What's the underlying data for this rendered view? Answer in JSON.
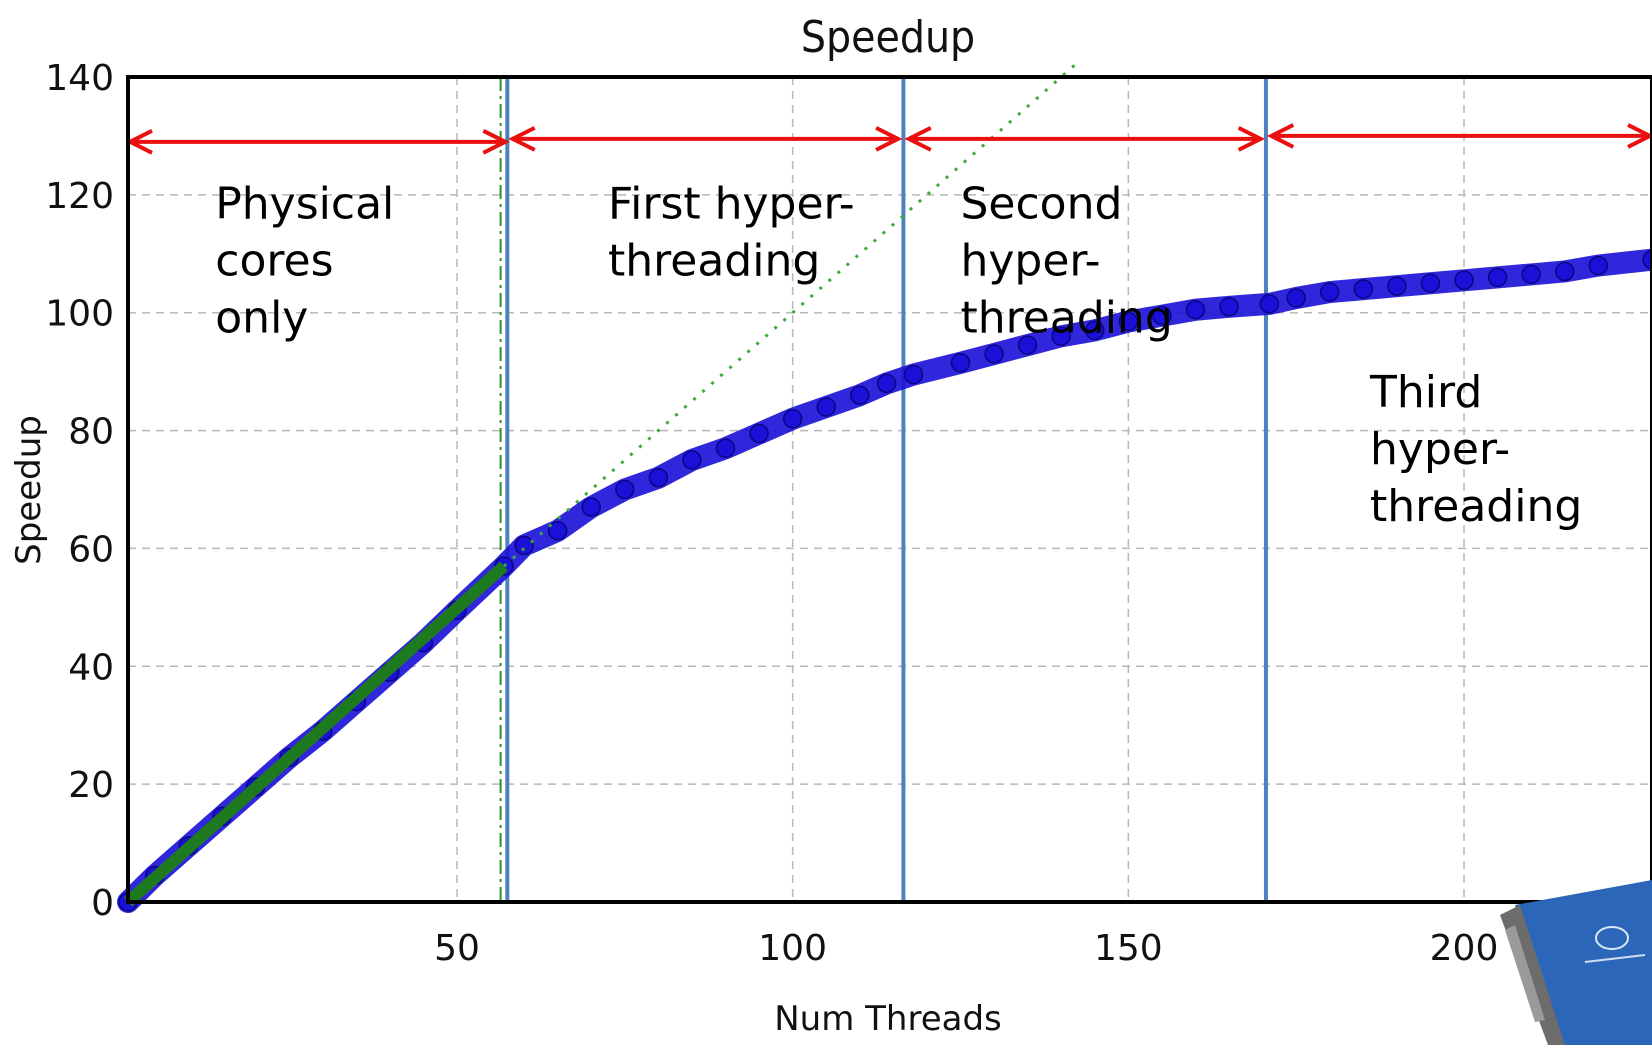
{
  "chart_data": {
    "type": "scatter",
    "title": "Speedup",
    "xlabel": "Num Threads",
    "ylabel": "Speedup",
    "xlim": [
      1,
      228
    ],
    "ylim": [
      0,
      140
    ],
    "xticks": [
      50,
      100,
      150,
      200
    ],
    "yticks": [
      0,
      20,
      40,
      60,
      80,
      100,
      120,
      140
    ],
    "grid": true,
    "series": [
      {
        "color": "#1a10d8",
        "x": [
          1,
          5,
          10,
          15,
          20,
          25,
          30,
          35,
          40,
          45,
          50,
          57,
          60,
          65,
          70,
          75,
          80,
          85,
          90,
          95,
          100,
          105,
          110,
          114,
          118,
          125,
          130,
          135,
          140,
          145,
          150,
          155,
          160,
          165,
          171,
          175,
          180,
          185,
          190,
          195,
          200,
          205,
          210,
          215,
          220,
          228
        ],
        "y": [
          0,
          4.5,
          9.5,
          14.5,
          19.5,
          24.5,
          29,
          34,
          39,
          44,
          49.5,
          57,
          60.5,
          63,
          67,
          70,
          72,
          75,
          77,
          79.5,
          82,
          84,
          86,
          88,
          89.5,
          91.5,
          93,
          94.5,
          96,
          97,
          98.5,
          99.5,
          100.5,
          101,
          101.5,
          102.5,
          103.5,
          104,
          104.5,
          105,
          105.5,
          106,
          106.5,
          107,
          108,
          109
        ]
      },
      {
        "type": "line",
        "color": "#1e7a1e",
        "x": [
          1,
          57
        ],
        "y": [
          0,
          57
        ]
      },
      {
        "type": "line",
        "style": "dotted",
        "color": "#3aaa3a",
        "x": [
          57,
          142
        ],
        "y": [
          57,
          142
        ]
      }
    ],
    "vlines": [
      {
        "x": 56.5,
        "color": "#2f8f2f",
        "style": "dash-dot"
      },
      {
        "x": 57.5,
        "color": "#4f81bd"
      },
      {
        "x": 116.5,
        "color": "#4f81bd"
      },
      {
        "x": 170.5,
        "color": "#4f81bd"
      }
    ],
    "arrows": [
      {
        "x1": 1,
        "x2": 57.5,
        "y": 129
      },
      {
        "x1": 58,
        "x2": 116,
        "y": 129.5
      },
      {
        "x1": 117,
        "x2": 170,
        "y": 129.5
      },
      {
        "x1": 171,
        "x2": 228,
        "y": 130
      }
    ],
    "annotations": [
      {
        "x": 14,
        "y": 116,
        "lines": [
          "Physical",
          "cores",
          "only"
        ]
      },
      {
        "x": 72.5,
        "y": 116,
        "lines": [
          "First hyper-",
          "threading"
        ]
      },
      {
        "x": 125,
        "y": 116,
        "lines": [
          "Second",
          "hyper-",
          "threading"
        ]
      },
      {
        "x": 186,
        "y": 84,
        "lines": [
          "Third",
          "hyper-",
          "threading"
        ]
      }
    ]
  },
  "decoration": {
    "card_name": "intel-coprocessor-card-icon"
  }
}
